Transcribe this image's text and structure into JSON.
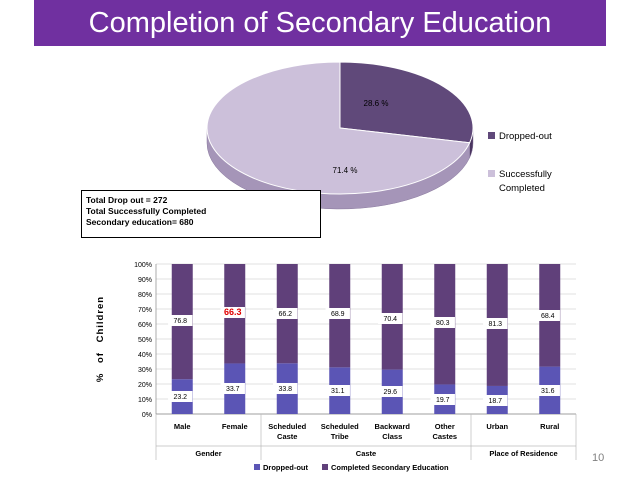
{
  "slide": {
    "title": "Completion of Secondary Education",
    "page_number": "10",
    "summary_lines": [
      "Total Drop out = 272",
      "Total Successfully Completed",
      "Secondary education= 680"
    ]
  },
  "colors": {
    "title_bg": "#7030a0",
    "pie_dropped": "#60497a",
    "pie_completed": "#ccc0da",
    "bar_dropped": "#5b55b5",
    "bar_completed": "#60407a",
    "highlight": "#e00000"
  },
  "chart_data": [
    {
      "type": "pie",
      "slices": [
        {
          "name": "Dropped-out",
          "value": 28.6,
          "label": "28.6 %"
        },
        {
          "name": "Successfully Completed",
          "value": 71.4,
          "label": "71.4 %"
        }
      ],
      "legend": [
        "Dropped-out",
        "Successfully Completed"
      ],
      "legend_position": "right"
    },
    {
      "type": "bar",
      "stacked": true,
      "percent": true,
      "categories": [
        "Male",
        "Female",
        "Scheduled Caste",
        "Scheduled Tribe",
        "Backward Class",
        "Other Castes",
        "Urban",
        "Rural"
      ],
      "groups": [
        {
          "label": "Gender",
          "from": 0,
          "to": 1
        },
        {
          "label": "Caste",
          "from": 2,
          "to": 5
        },
        {
          "label": "Place of Residence",
          "from": 6,
          "to": 7
        }
      ],
      "series": [
        {
          "name": "Dropped-out",
          "values": [
            23.2,
            33.7,
            33.8,
            31.1,
            29.6,
            19.7,
            18.7,
            31.6
          ]
        },
        {
          "name": "Completed Secondary Education",
          "values": [
            76.8,
            66.3,
            66.2,
            68.9,
            70.4,
            80.3,
            81.3,
            68.4
          ]
        }
      ],
      "ylabel": "% of Children",
      "ylim": [
        0,
        100
      ],
      "yticks": [
        "0%",
        "10%",
        "20%",
        "30%",
        "40%",
        "50%",
        "60%",
        "70%",
        "80%",
        "90%",
        "100%"
      ],
      "highlighted_label": {
        "series": 1,
        "index": 1
      },
      "legend_position": "bottom"
    }
  ]
}
